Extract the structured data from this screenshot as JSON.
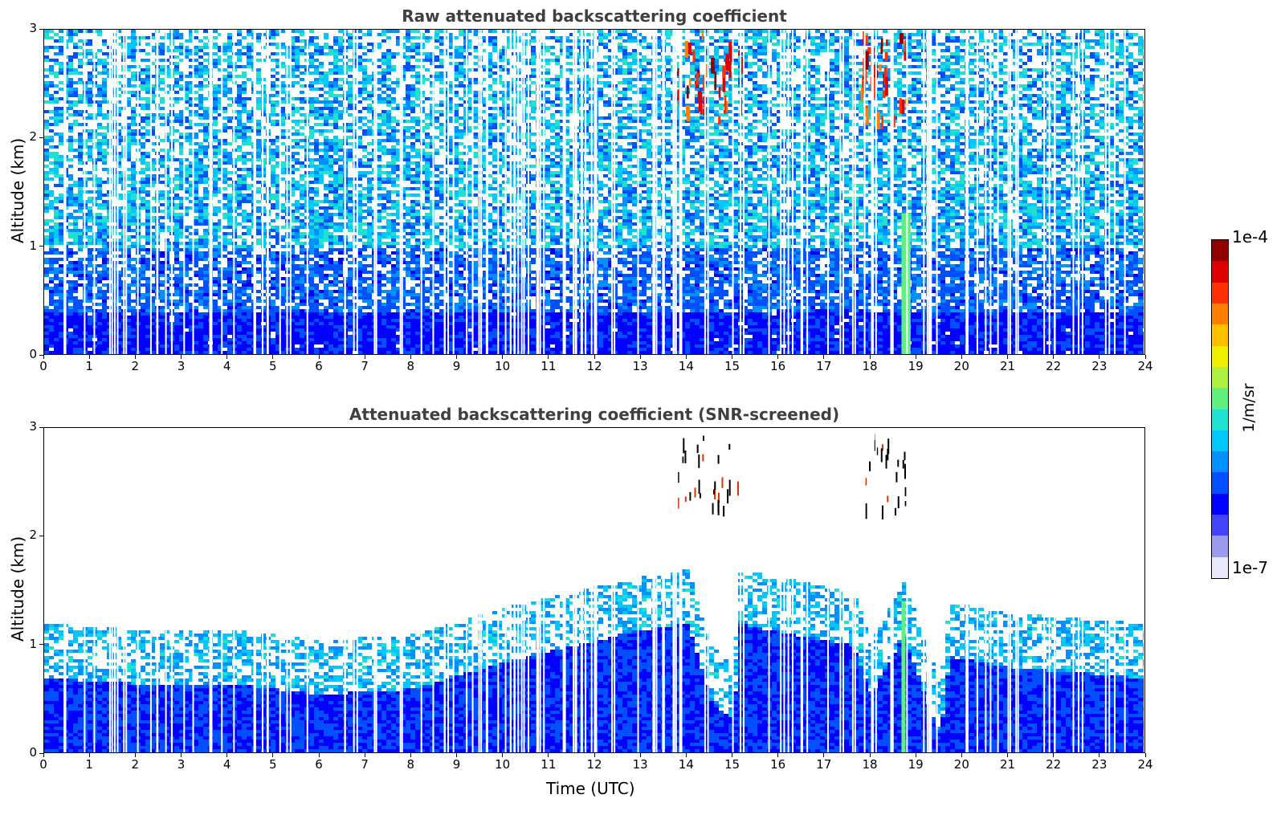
{
  "chart_data": [
    {
      "type": "heatmap",
      "title": "Raw attenuated backscattering coefficient",
      "xlabel": "",
      "ylabel": "Altitude (km)",
      "xlim": [
        0,
        24
      ],
      "ylim": [
        0,
        3
      ],
      "x_ticks": [
        "0",
        "1",
        "2",
        "3",
        "4",
        "5",
        "6",
        "7",
        "8",
        "9",
        "10",
        "11",
        "12",
        "13",
        "14",
        "15",
        "16",
        "17",
        "18",
        "19",
        "20",
        "21",
        "22",
        "23",
        "24"
      ],
      "y_ticks": [
        "0",
        "1",
        "2",
        "3"
      ],
      "features": [
        {
          "desc": "dense blue boundary layer",
          "time": [
            0,
            24
          ],
          "altitude": [
            0,
            0.4
          ],
          "level": 0.2
        },
        {
          "desc": "noisy cyan/green aloft",
          "time": [
            0,
            24
          ],
          "altitude": [
            0.5,
            3.0
          ],
          "level": 0.45
        },
        {
          "desc": "dark red cloud streaks",
          "time": [
            13.8,
            15.2
          ],
          "altitude": [
            2.2,
            3.0
          ],
          "level": 0.95
        },
        {
          "desc": "dark red cloud streaks",
          "time": [
            17.8,
            18.8
          ],
          "altitude": [
            2.2,
            3.0
          ],
          "level": 0.95
        },
        {
          "desc": "cyan vertical plume",
          "time": [
            18.7,
            18.9
          ],
          "altitude": [
            0,
            1.3
          ],
          "level": 0.5
        }
      ]
    },
    {
      "type": "heatmap",
      "title": "Attenuated backscattering coefficient (SNR-screened)",
      "xlabel": "Time (UTC)",
      "ylabel": "Altitude (km)",
      "xlim": [
        0,
        24
      ],
      "ylim": [
        0,
        3
      ],
      "x_ticks": [
        "0",
        "1",
        "2",
        "3",
        "4",
        "5",
        "6",
        "7",
        "8",
        "9",
        "10",
        "11",
        "12",
        "13",
        "14",
        "15",
        "16",
        "17",
        "18",
        "19",
        "20",
        "21",
        "22",
        "23",
        "24"
      ],
      "y_ticks": [
        "0",
        "1",
        "2",
        "3"
      ],
      "boundary_top_km": [
        {
          "t": 0,
          "h": 1.0
        },
        {
          "t": 2,
          "h": 0.95
        },
        {
          "t": 4,
          "h": 0.95
        },
        {
          "t": 6,
          "h": 0.85
        },
        {
          "t": 8,
          "h": 0.9
        },
        {
          "t": 10,
          "h": 1.15
        },
        {
          "t": 12,
          "h": 1.35
        },
        {
          "t": 13,
          "h": 1.45
        },
        {
          "t": 14,
          "h": 1.5
        },
        {
          "t": 14.5,
          "h": 0.8
        },
        {
          "t": 15,
          "h": 0.6
        },
        {
          "t": 15.1,
          "h": 1.5
        },
        {
          "t": 17.6,
          "h": 1.3
        },
        {
          "t": 18,
          "h": 0.85
        },
        {
          "t": 18.7,
          "h": 1.4
        },
        {
          "t": 19.5,
          "h": 0.45
        },
        {
          "t": 19.7,
          "h": 1.2
        },
        {
          "t": 21,
          "h": 1.1
        },
        {
          "t": 24,
          "h": 1.0
        }
      ],
      "features": [
        {
          "desc": "black/red cloud specks",
          "time": [
            13.8,
            15.2
          ],
          "altitude": [
            2.2,
            2.95
          ],
          "level": 1.0
        },
        {
          "desc": "black/red cloud specks",
          "time": [
            17.9,
            18.8
          ],
          "altitude": [
            2.25,
            3.0
          ],
          "level": 1.0
        }
      ]
    }
  ],
  "colorbar": {
    "max_label": "1e-4",
    "min_label": "1e-7",
    "unit": "1/m/sr",
    "colors": [
      "#e8e8f8",
      "#9a9af0",
      "#4444ff",
      "#0000ff",
      "#0050ff",
      "#0090ff",
      "#00c8ff",
      "#20e0d0",
      "#60f080",
      "#b0f040",
      "#f0f000",
      "#ffc000",
      "#ff8000",
      "#ff3000",
      "#e00000",
      "#900000"
    ]
  }
}
